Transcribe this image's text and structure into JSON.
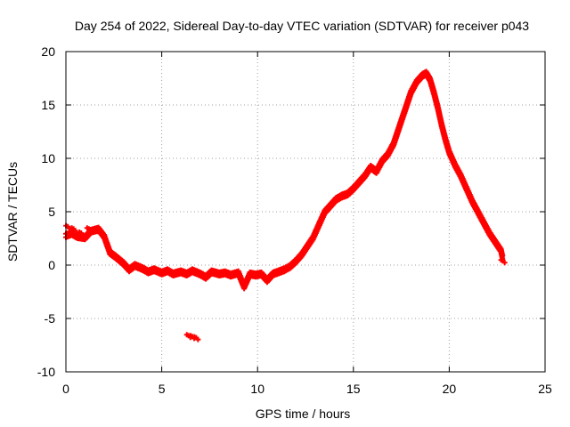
{
  "chart_data": {
    "type": "scatter",
    "title": "Day 254 of 2022, Sidereal Day-to-day VTEC variation (SDTVAR) for receiver p043",
    "xlabel": "GPS time / hours",
    "ylabel": "SDTVAR / TECUs",
    "xlim": [
      0,
      25
    ],
    "ylim": [
      -10,
      20
    ],
    "x_ticks": [
      0,
      5,
      10,
      15,
      20,
      25
    ],
    "y_ticks": [
      -10,
      -5,
      0,
      5,
      10,
      15,
      20
    ],
    "x_tick_labels": [
      "0",
      "5",
      "10",
      "15",
      "20",
      "25"
    ],
    "y_tick_labels": [
      "-10",
      "-5",
      "0",
      "5",
      "10",
      "15",
      "20"
    ],
    "grid": true,
    "legend": "none",
    "marker": "+",
    "series": [
      {
        "name": "SDTVAR p043",
        "color": "#ff0000",
        "x": [
          0.0,
          0.3,
          0.6,
          1.0,
          1.3,
          1.7,
          2.0,
          2.3,
          2.6,
          3.0,
          3.3,
          3.6,
          4.0,
          4.3,
          4.6,
          5.0,
          5.3,
          5.6,
          6.0,
          6.3,
          6.6,
          7.0,
          7.3,
          7.6,
          8.0,
          8.3,
          8.6,
          9.0,
          9.3,
          9.6,
          9.9,
          10.2,
          10.5,
          10.8,
          11.1,
          11.4,
          11.7,
          12.0,
          12.3,
          12.6,
          12.9,
          13.2,
          13.5,
          13.8,
          14.1,
          14.4,
          14.7,
          15.0,
          15.3,
          15.6,
          15.9,
          16.2,
          16.5,
          16.8,
          17.1,
          17.4,
          17.7,
          18.0,
          18.3,
          18.6,
          18.8,
          19.0,
          19.2,
          19.4,
          19.6,
          19.8,
          20.0,
          20.3,
          20.6,
          20.9,
          21.2,
          21.5,
          21.8,
          22.1,
          22.4,
          22.7,
          22.8,
          0.1,
          0.4,
          0.8,
          1.2,
          1.6,
          6.4,
          6.6,
          6.8
        ],
        "y": [
          2.6,
          2.8,
          2.5,
          2.4,
          3.0,
          3.2,
          2.5,
          1.0,
          0.6,
          0.0,
          -0.6,
          -0.2,
          -0.5,
          -0.8,
          -0.6,
          -0.9,
          -0.7,
          -1.0,
          -0.8,
          -1.0,
          -0.7,
          -1.0,
          -1.3,
          -0.8,
          -1.0,
          -0.9,
          -1.1,
          -0.9,
          -2.2,
          -1.0,
          -1.1,
          -1.0,
          -1.6,
          -1.0,
          -0.8,
          -0.6,
          -0.3,
          0.2,
          0.8,
          1.6,
          2.4,
          3.6,
          4.8,
          5.4,
          6.0,
          6.3,
          6.5,
          7.0,
          7.6,
          8.2,
          9.0,
          8.6,
          9.6,
          10.2,
          11.2,
          12.8,
          14.4,
          16.0,
          17.0,
          17.6,
          17.8,
          17.2,
          16.0,
          14.6,
          13.0,
          11.6,
          10.4,
          9.2,
          8.2,
          7.0,
          5.8,
          4.8,
          3.8,
          2.8,
          2.0,
          1.2,
          0.4,
          3.6,
          3.4,
          3.0,
          3.4,
          3.3,
          -6.6,
          -6.7,
          -6.8
        ]
      }
    ]
  }
}
